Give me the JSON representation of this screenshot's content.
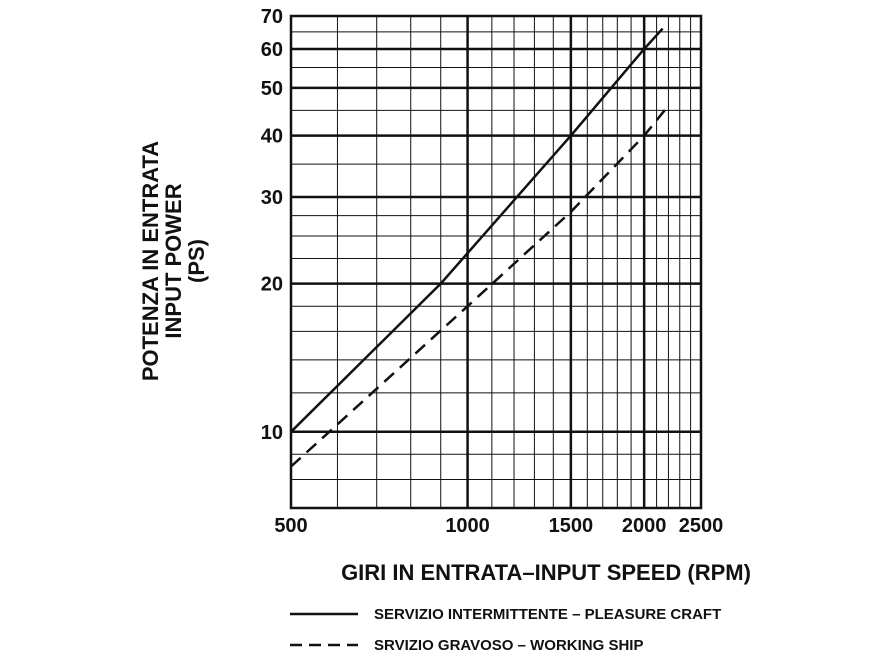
{
  "chart_data": {
    "type": "line",
    "x_scale": "log",
    "y_scale": "log",
    "xlim": [
      500,
      2500
    ],
    "ylim": [
      7,
      70
    ],
    "grid": true,
    "ylabel_lines": [
      "POTENZA IN ENTRATA",
      "INPUT POWER",
      "(PS)"
    ],
    "xlabel": "GIRI IN ENTRATA–INPUT SPEED  (RPM)",
    "x_ticks": [
      {
        "value": 500,
        "label": "500"
      },
      {
        "value": 1000,
        "label": "1000"
      },
      {
        "value": 1500,
        "label": "1500"
      },
      {
        "value": 2000,
        "label": "2000"
      },
      {
        "value": 2500,
        "label": "2500"
      }
    ],
    "y_ticks": [
      {
        "value": 10,
        "label": "10"
      },
      {
        "value": 20,
        "label": "20"
      },
      {
        "value": 30,
        "label": "30"
      },
      {
        "value": 40,
        "label": "40"
      },
      {
        "value": 50,
        "label": "50"
      },
      {
        "value": 60,
        "label": "60"
      },
      {
        "value": 70,
        "label": "70"
      }
    ],
    "legend_position": "bottom",
    "series": [
      {
        "name": "SERVIZIO INTERMITTENTE – PLEASURE CRAFT",
        "style": "solid",
        "x": [
          500,
          900,
          1500,
          2000,
          2150
        ],
        "y": [
          10,
          20,
          40,
          60,
          66
        ]
      },
      {
        "name": "SRVIZIO GRAVOSO – WORKING SHIP",
        "style": "dashed",
        "x": [
          500,
          1000,
          1500,
          2000,
          2200
        ],
        "y": [
          8.5,
          18,
          28,
          40,
          46
        ]
      }
    ]
  }
}
